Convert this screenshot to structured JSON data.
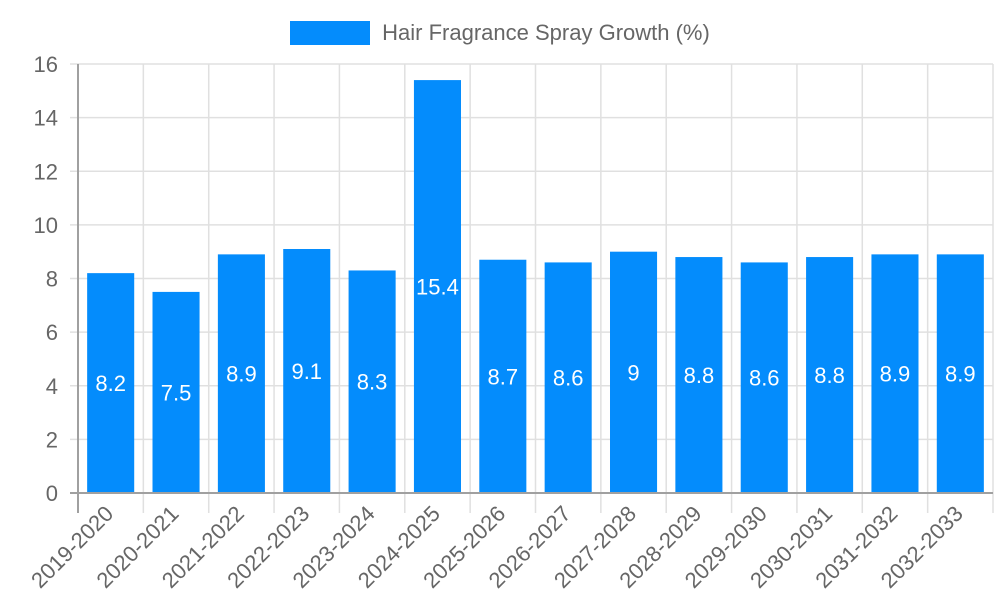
{
  "chart_data": {
    "type": "bar",
    "title": "",
    "xlabel": "",
    "ylabel": "",
    "categories": [
      "2019-2020",
      "2020-2021",
      "2021-2022",
      "2022-2023",
      "2023-2024",
      "2024-2025",
      "2025-2026",
      "2026-2027",
      "2027-2028",
      "2028-2029",
      "2029-2030",
      "2030-2031",
      "2031-2032",
      "2032-2033"
    ],
    "series": [
      {
        "name": "Hair Fragrance Spray Growth (%)",
        "color": "#048cfc",
        "values": [
          8.2,
          7.5,
          8.9,
          9.1,
          8.3,
          15.4,
          8.7,
          8.6,
          9,
          8.8,
          8.6,
          8.8,
          8.9,
          8.9
        ]
      }
    ],
    "data_labels": [
      "8.2",
      "7.5",
      "8.9",
      "9.1",
      "8.3",
      "15.4",
      "8.7",
      "8.6",
      "9",
      "8.8",
      "8.6",
      "8.8",
      "8.9",
      "8.9"
    ],
    "ylim": [
      0,
      16
    ],
    "yticks": [
      0,
      2,
      4,
      6,
      8,
      10,
      12,
      14,
      16
    ],
    "grid": true,
    "legend_position": "top",
    "x_tick_rotation": -45
  },
  "legend": {
    "label": "Hair Fragrance Spray Growth (%)"
  },
  "colors": {
    "bar": "#048cfc",
    "grid": "#e0e0e0",
    "axis": "#a0a0a0",
    "tick_text": "#666666",
    "data_label": "#ffffff"
  }
}
